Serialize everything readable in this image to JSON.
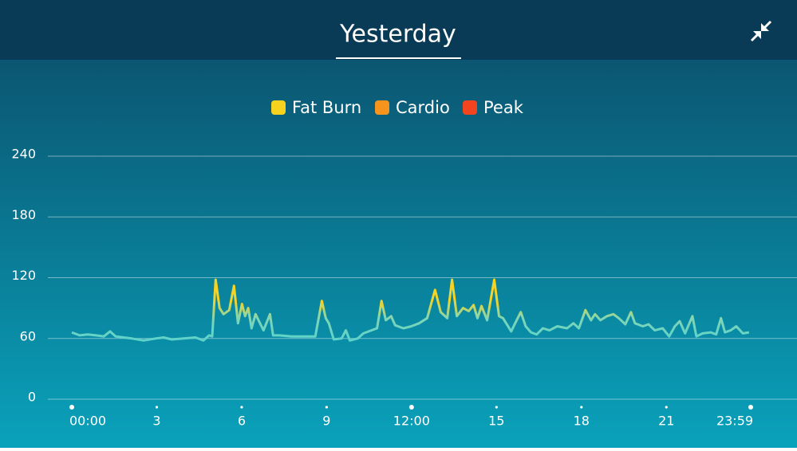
{
  "header": {
    "title": "Yesterday"
  },
  "chart_data": {
    "type": "line",
    "legend": [
      {
        "name": "Fat Burn",
        "color": "#f7d21e"
      },
      {
        "name": "Cardio",
        "color": "#f7941d"
      },
      {
        "name": "Peak",
        "color": "#f2441f"
      }
    ],
    "x": [
      0,
      0.28,
      0.56,
      0.85,
      1.13,
      1.35,
      1.55,
      1.83,
      2.12,
      2.54,
      2.96,
      3.24,
      3.53,
      3.95,
      4.37,
      4.65,
      4.85,
      4.96,
      5.08,
      5.22,
      5.36,
      5.56,
      5.73,
      5.87,
      6.01,
      6.12,
      6.23,
      6.35,
      6.49,
      6.63,
      6.77,
      7.0,
      7.11,
      7.33,
      7.76,
      8.18,
      8.6,
      8.83,
      8.97,
      9.08,
      9.25,
      9.53,
      9.68,
      9.82,
      10.1,
      10.3,
      10.58,
      10.78,
      10.94,
      11.09,
      11.28,
      11.42,
      11.71,
      11.99,
      12.27,
      12.55,
      12.83,
      13.03,
      13.26,
      13.43,
      13.6,
      13.82,
      14.02,
      14.19,
      14.33,
      14.47,
      14.67,
      14.92,
      15.09,
      15.23,
      15.52,
      15.66,
      15.86,
      16.03,
      16.22,
      16.42,
      16.64,
      16.87,
      17.15,
      17.49,
      17.72,
      17.91,
      18.14,
      18.34,
      18.48,
      18.67,
      18.9,
      19.13,
      19.32,
      19.55,
      19.75,
      19.89,
      20.17,
      20.37,
      20.59,
      20.87,
      21.1,
      21.3,
      21.47,
      21.66,
      21.92,
      22.06,
      22.28,
      22.57,
      22.76,
      22.93,
      23.07,
      23.27,
      23.47,
      23.7,
      23.92
    ],
    "values": [
      66,
      63,
      64,
      63,
      62,
      67,
      62,
      61,
      60,
      58,
      60,
      61,
      59,
      60,
      61,
      58,
      63,
      62,
      118,
      90,
      84,
      88,
      112,
      75,
      94,
      82,
      90,
      70,
      84,
      76,
      68,
      84,
      63,
      63,
      62,
      62,
      62,
      97,
      80,
      75,
      59,
      60,
      68,
      58,
      60,
      65,
      68,
      70,
      97,
      78,
      82,
      73,
      70,
      72,
      75,
      80,
      108,
      86,
      80,
      118,
      82,
      90,
      87,
      93,
      80,
      92,
      78,
      118,
      82,
      80,
      67,
      75,
      86,
      72,
      66,
      64,
      70,
      68,
      72,
      70,
      75,
      70,
      88,
      78,
      84,
      78,
      82,
      84,
      80,
      74,
      86,
      75,
      72,
      74,
      68,
      70,
      62,
      72,
      77,
      65,
      82,
      62,
      65,
      66,
      64,
      80,
      66,
      68,
      72,
      65,
      66
    ],
    "xlim": [
      0,
      23.98
    ],
    "xticks": [
      {
        "value": 0,
        "label": "00:00"
      },
      3,
      6,
      9,
      {
        "value": 12,
        "label": "12:00"
      },
      15,
      18,
      21,
      {
        "value": 23.98,
        "label": "23:59"
      }
    ],
    "ylim": [
      0,
      240
    ],
    "yticks": [
      0,
      60,
      120,
      180,
      240
    ],
    "grid": true
  }
}
